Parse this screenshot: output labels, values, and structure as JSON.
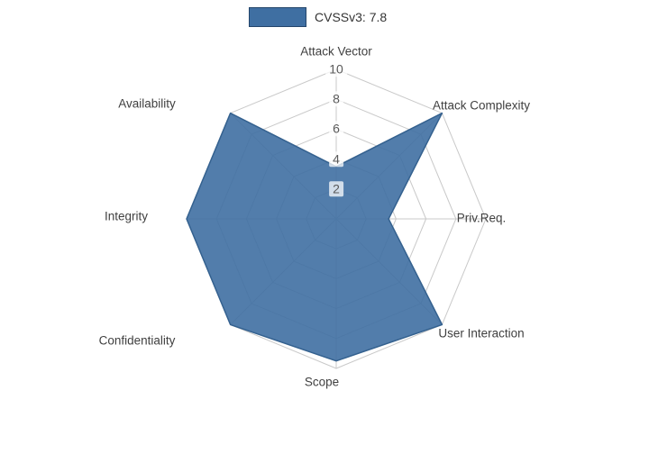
{
  "legend": {
    "label": "CVSSv3: 7.8"
  },
  "chart_data": {
    "type": "radar",
    "title": "",
    "categories": [
      "Attack Vector",
      "Attack Complexity",
      "Priv.Req.",
      "User Interaction",
      "Scope",
      "Confidentiality",
      "Integrity",
      "Availability"
    ],
    "series": [
      {
        "name": "CVSSv3: 7.8",
        "values": [
          3.5,
          10,
          3.5,
          10,
          9.5,
          10,
          10,
          10
        ],
        "fill_color": "#3f6fa2",
        "fill_opacity": 0.9,
        "line_color": "#34618f"
      }
    ],
    "radial_axis": {
      "min": 0,
      "max": 10,
      "tick_values": [
        2,
        4,
        6,
        8,
        10
      ],
      "tick_labels": [
        "2",
        "4",
        "6",
        "8",
        "10"
      ]
    },
    "grid": true,
    "legend_position": "top-center",
    "colors": {
      "grid": "#c9c9c9",
      "label_text": "#404040",
      "tick_text": "#5a5a5a",
      "background": "#ffffff"
    }
  }
}
